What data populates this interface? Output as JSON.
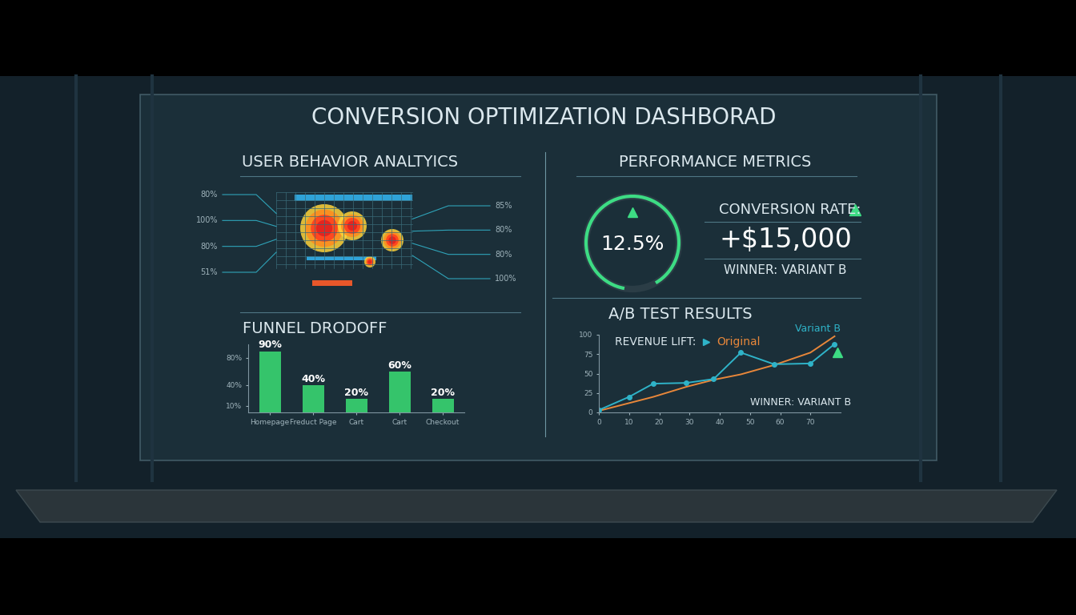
{
  "title": "CONVERSION OPTIMIZATION DASHBORAD",
  "user_behavior": {
    "title": "USER BEHAVIOR ANALTYICS",
    "left_labels": [
      "80%",
      "100%",
      "80%",
      "51%"
    ],
    "right_labels": [
      "85%",
      "80%",
      "80%",
      "100%"
    ]
  },
  "performance": {
    "title": "PERFORMANCE METRICS",
    "gauge_label": "12.5%",
    "metric_label": "CONVERSION RATE:",
    "metric_value": "+$15,000",
    "winner": "WINNER: VARIANT B"
  },
  "chart_data": [
    {
      "type": "bar",
      "title": "FUNNEL DRODOFF",
      "categories": [
        "Homepage",
        "Freduct Page",
        "Cart",
        "Cart",
        "Checkout"
      ],
      "values": [
        90,
        40,
        20,
        60,
        20
      ],
      "value_labels": [
        "90%",
        "40%",
        "20%",
        "60%",
        "20%"
      ],
      "data_labels": true,
      "color": "#35c46b",
      "ylim": [
        0,
        100
      ],
      "yticks": [
        {
          "value": 10,
          "label": "10%"
        },
        {
          "value": 40,
          "label": "40%"
        },
        {
          "value": 80,
          "label": "80%"
        }
      ]
    },
    {
      "type": "line",
      "title": "A/B TEST RESULTS",
      "annotations": [
        "REVENUE LIFT:",
        "WINNER: VARIANT B"
      ],
      "x": [
        0,
        10,
        18,
        29,
        38,
        47,
        58,
        70,
        78
      ],
      "series": [
        {
          "name": "Original",
          "color": "#e8873a",
          "line_style": "solid",
          "values": [
            2,
            12,
            20,
            33,
            42,
            49,
            61,
            77,
            98
          ]
        },
        {
          "name": "Variant B",
          "color": "#2fb3c8",
          "line_style": "solid",
          "marker": "o",
          "values": [
            3,
            20,
            37,
            38,
            43,
            77,
            62,
            63,
            88
          ]
        }
      ],
      "xlim": [
        0,
        80
      ],
      "xticks": [
        0,
        10,
        20,
        30,
        40,
        50,
        60,
        70
      ],
      "ylim": [
        0,
        100
      ],
      "yticks": [
        0,
        25,
        50,
        75,
        100
      ]
    }
  ]
}
